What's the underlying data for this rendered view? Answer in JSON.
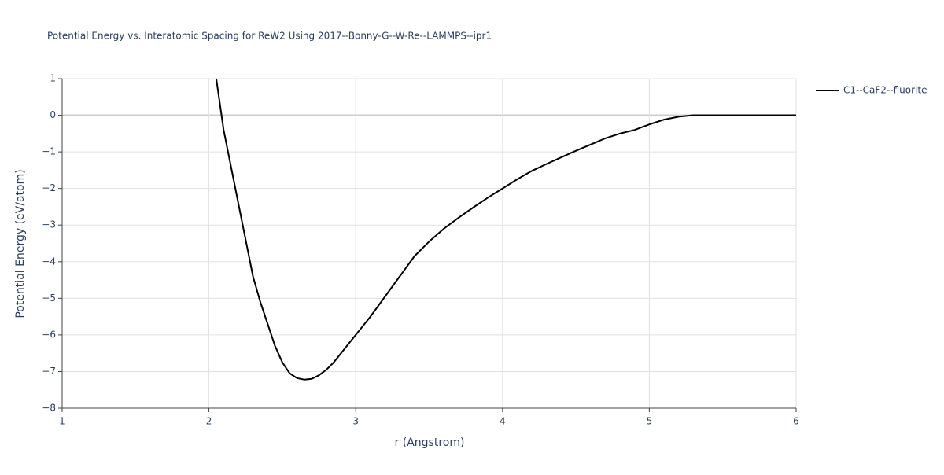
{
  "chart_data": {
    "type": "line",
    "title": "Potential Energy vs. Interatomic Spacing for ReW2 Using 2017--Bonny-G--W-Re--LAMMPS--ipr1",
    "x_label": "r (Angstrom)",
    "y_label": "Potential Energy (eV/atom)",
    "x": [
      2.05,
      2.1,
      2.15,
      2.2,
      2.25,
      2.3,
      2.35,
      2.4,
      2.45,
      2.5,
      2.55,
      2.6,
      2.65,
      2.7,
      2.75,
      2.8,
      2.85,
      2.9,
      3.0,
      3.1,
      3.2,
      3.3,
      3.4,
      3.5,
      3.6,
      3.7,
      3.8,
      3.9,
      4.0,
      4.1,
      4.2,
      4.3,
      4.4,
      4.5,
      4.6,
      4.7,
      4.8,
      4.9,
      5.0,
      5.1,
      5.2,
      5.3,
      5.5,
      6.0
    ],
    "series": [
      {
        "name": "C1--CaF2--fluorite",
        "color": "#000000",
        "values": [
          1.0,
          -0.4,
          -1.4,
          -2.4,
          -3.4,
          -4.4,
          -5.1,
          -5.7,
          -6.3,
          -6.75,
          -7.05,
          -7.18,
          -7.22,
          -7.2,
          -7.1,
          -6.95,
          -6.75,
          -6.5,
          -6.0,
          -5.5,
          -4.95,
          -4.4,
          -3.85,
          -3.45,
          -3.1,
          -2.8,
          -2.52,
          -2.25,
          -2.0,
          -1.75,
          -1.52,
          -1.33,
          -1.15,
          -0.97,
          -0.8,
          -0.63,
          -0.5,
          -0.4,
          -0.25,
          -0.12,
          -0.04,
          0.0,
          0.0,
          0.0
        ]
      }
    ],
    "xlim": [
      1,
      6
    ],
    "xticks": [
      1,
      2,
      3,
      4,
      5,
      6
    ],
    "ylim": [
      -8,
      1
    ],
    "yticks": [
      {
        "value": -8,
        "label": "−8"
      },
      {
        "value": -7,
        "label": "−7"
      },
      {
        "value": -6,
        "label": "−6"
      },
      {
        "value": -5,
        "label": "−5"
      },
      {
        "value": -4,
        "label": "−4"
      },
      {
        "value": -3,
        "label": "−3"
      },
      {
        "value": -2,
        "label": "−2"
      },
      {
        "value": -1,
        "label": "−1"
      },
      0,
      1
    ],
    "grid": true,
    "legend": "right"
  }
}
